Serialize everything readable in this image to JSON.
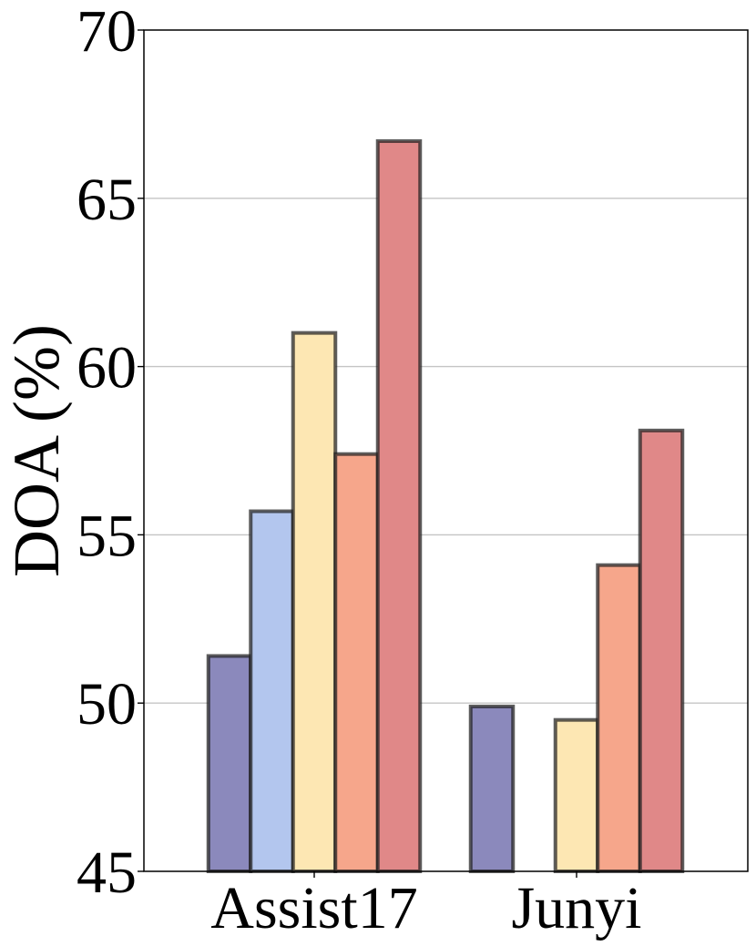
{
  "chart_data": {
    "type": "bar",
    "ylabel": "DOA (%)",
    "ylim": [
      45,
      70
    ],
    "yticks": [
      "45",
      "50",
      "55",
      "60",
      "65",
      "70"
    ],
    "grid": "horizontal",
    "categories": [
      "Assist17",
      "Junyi"
    ],
    "series": [
      {
        "color": "#8b89bc",
        "values": [
          51.4,
          49.9
        ]
      },
      {
        "color": "#b3c6ee",
        "values": [
          55.7,
          null
        ]
      },
      {
        "color": "#fde7b3",
        "values": [
          61.0,
          49.5
        ]
      },
      {
        "color": "#f6a68b",
        "values": [
          57.4,
          54.1
        ]
      },
      {
        "color": "#e08888",
        "values": [
          66.7,
          58.1
        ]
      }
    ]
  }
}
